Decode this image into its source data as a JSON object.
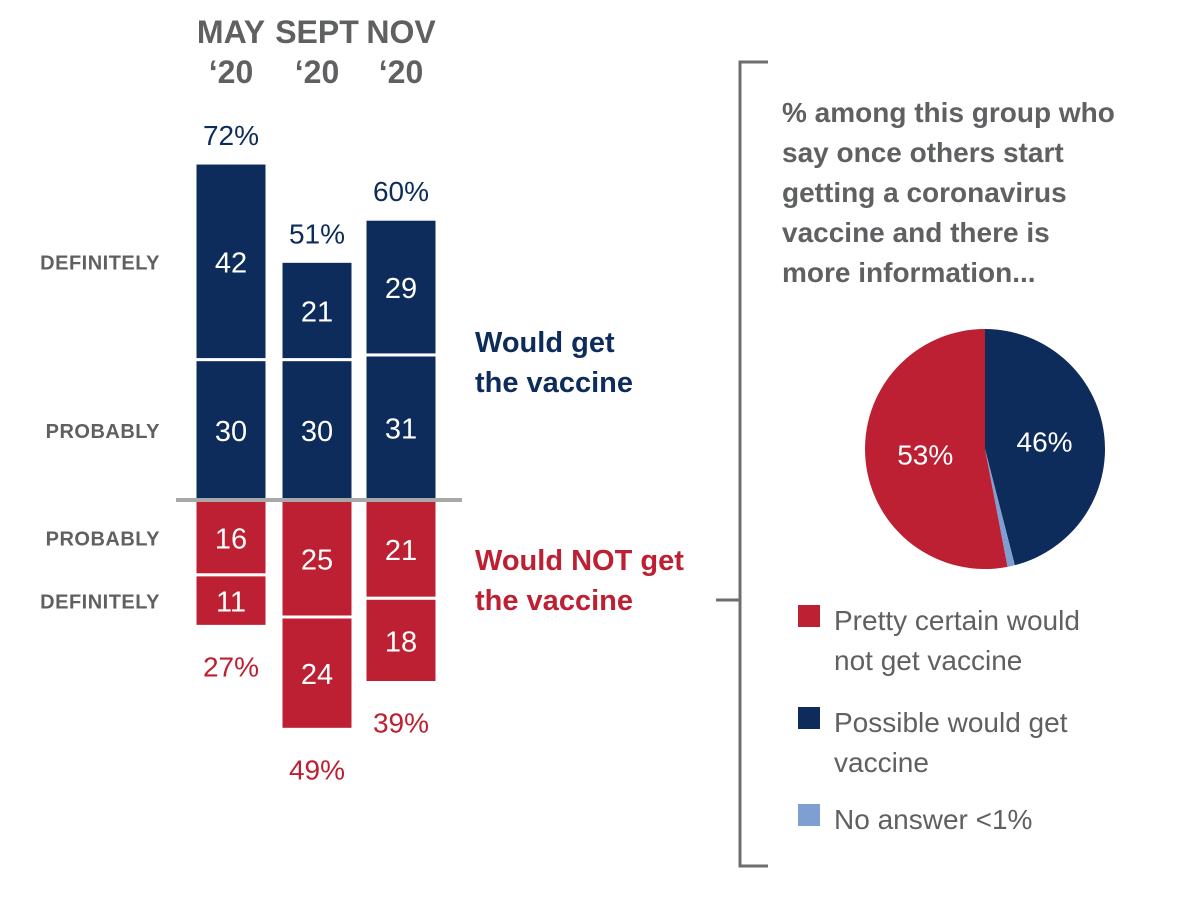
{
  "colors": {
    "would_get": "#0d2c5b",
    "would_not": "#bc2032",
    "no_answer": "#7f9fd3",
    "gray_text": "#5f6062",
    "divider": "#a8a8a8"
  },
  "chart_data": [
    {
      "type": "bar",
      "subtype": "diverging-stacked",
      "categories": [
        "MAY ‘20",
        "SEPT ‘20",
        "NOV ‘20"
      ],
      "category_lines": [
        [
          "MAY",
          "‘20"
        ],
        [
          "SEPT",
          "‘20"
        ],
        [
          "NOV",
          "‘20"
        ]
      ],
      "row_labels": {
        "positive": [
          "DEFINITELY",
          "PROBABLY"
        ],
        "negative": [
          "PROBABLY",
          "DEFINITELY"
        ]
      },
      "series": [
        {
          "name": "Would get the vaccine",
          "group": "positive",
          "level": "DEFINITELY",
          "values": [
            42,
            21,
            29
          ]
        },
        {
          "name": "Would get the vaccine",
          "group": "positive",
          "level": "PROBABLY",
          "values": [
            30,
            30,
            31
          ]
        },
        {
          "name": "Would NOT get the vaccine",
          "group": "negative",
          "level": "PROBABLY",
          "values": [
            16,
            25,
            21
          ]
        },
        {
          "name": "Would NOT get the vaccine",
          "group": "negative",
          "level": "DEFINITELY",
          "values": [
            11,
            24,
            18
          ]
        }
      ],
      "totals": {
        "positive": [
          "72%",
          "51%",
          "60%"
        ],
        "negative": [
          "27%",
          "49%",
          "39%"
        ]
      },
      "group_labels": {
        "positive": [
          "Would get",
          "the vaccine"
        ],
        "negative": [
          "Would NOT get",
          "the vaccine"
        ]
      }
    },
    {
      "type": "pie",
      "note_lines": [
        "% among this group who",
        "say once others start",
        "getting a coronavirus",
        "vaccine and there is",
        "more information..."
      ],
      "slices": [
        {
          "name": "Possible would get vaccine",
          "value": 46,
          "label": "46%",
          "color": "#0d2c5b"
        },
        {
          "name": "No answer",
          "value": 1,
          "label": "",
          "color": "#7f9fd3"
        },
        {
          "name": "Pretty certain would not get vaccine",
          "value": 53,
          "label": "53%",
          "color": "#bc2032"
        }
      ],
      "legend": [
        {
          "lines": [
            "Pretty certain would",
            "not get vaccine"
          ],
          "color": "#bc2032"
        },
        {
          "lines": [
            "Possible would get",
            "vaccine"
          ],
          "color": "#0d2c5b"
        },
        {
          "lines": [
            "No answer <1%"
          ],
          "color": "#7f9fd3"
        }
      ]
    }
  ]
}
